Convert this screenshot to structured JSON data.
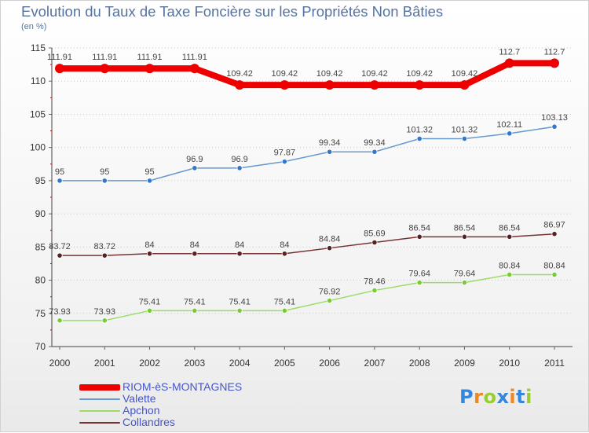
{
  "header": {
    "title": "Evolution du Taux de Taxe Foncière sur les Propriétés Non Bâties",
    "subtitle": "(en %)"
  },
  "chart_data": {
    "type": "line",
    "x": [
      "2000",
      "2001",
      "2002",
      "2003",
      "2004",
      "2005",
      "2006",
      "2007",
      "2008",
      "2009",
      "2010",
      "2011"
    ],
    "ylim": [
      70,
      115
    ],
    "yticks": [
      "70",
      "75",
      "80",
      "85",
      "90",
      "95",
      "100",
      "105",
      "110",
      "115"
    ],
    "grid": "horizontal-dotted",
    "legend_position": "bottom-left",
    "series": [
      {
        "name": "RIOM-èS-MONTAGNES",
        "color": "#ee0000",
        "values": [
          111.91,
          111.91,
          111.91,
          111.91,
          109.42,
          109.42,
          109.42,
          109.42,
          109.42,
          109.42,
          112.7,
          112.7
        ],
        "labels": [
          "111.91",
          "111.91",
          "111.91",
          "111.91",
          "109.42",
          "109.42",
          "109.42",
          "109.42",
          "109.42",
          "109.42",
          "112.7",
          "112.7"
        ]
      },
      {
        "name": "Valette",
        "color": "#6699cc",
        "values": [
          95,
          95,
          95,
          96.9,
          96.9,
          97.87,
          99.34,
          99.34,
          101.32,
          101.32,
          102.11,
          103.13
        ],
        "labels": [
          "95",
          "95",
          "95",
          "96.9",
          "96.9",
          "97.87",
          "99.34",
          "99.34",
          "101.32",
          "101.32",
          "102.11",
          "103.13"
        ]
      },
      {
        "name": "Apchon",
        "color": "#99dd66",
        "values": [
          73.93,
          73.93,
          75.41,
          75.41,
          75.41,
          75.41,
          76.92,
          78.46,
          79.64,
          79.64,
          80.84,
          80.84
        ],
        "labels": [
          "73.93",
          "73.93",
          "75.41",
          "75.41",
          "75.41",
          "75.41",
          "76.92",
          "78.46",
          "79.64",
          "79.64",
          "80.84",
          "80.84"
        ]
      },
      {
        "name": "Collandres",
        "color": "#773333",
        "values": [
          83.72,
          83.72,
          84,
          84,
          84,
          84,
          84.84,
          85.69,
          86.54,
          86.54,
          86.54,
          86.97
        ],
        "labels": [
          "83.72",
          "83.72",
          "84",
          "84",
          "84",
          "84",
          "84.84",
          "85.69",
          "86.54",
          "86.54",
          "86.54",
          "86.97"
        ]
      }
    ]
  },
  "legend": {
    "items": [
      {
        "label": "RIOM-èS-MONTAGNES",
        "color": "#ee0000",
        "text_color": "#4455cc"
      },
      {
        "label": "Valette",
        "color": "#6699cc",
        "text_color": "#4455cc"
      },
      {
        "label": "Apchon",
        "color": "#99dd66",
        "text_color": "#4455cc"
      },
      {
        "label": "Collandres",
        "color": "#773333",
        "text_color": "#4455cc"
      }
    ]
  },
  "brand": {
    "letters": [
      "P",
      "r",
      "o",
      "x",
      "i",
      "t",
      "i"
    ],
    "colors": [
      "#3388dd",
      "#ee8822",
      "#99cc33",
      "#3388dd",
      "#ee8822",
      "#3388dd",
      "#99cc33"
    ]
  }
}
